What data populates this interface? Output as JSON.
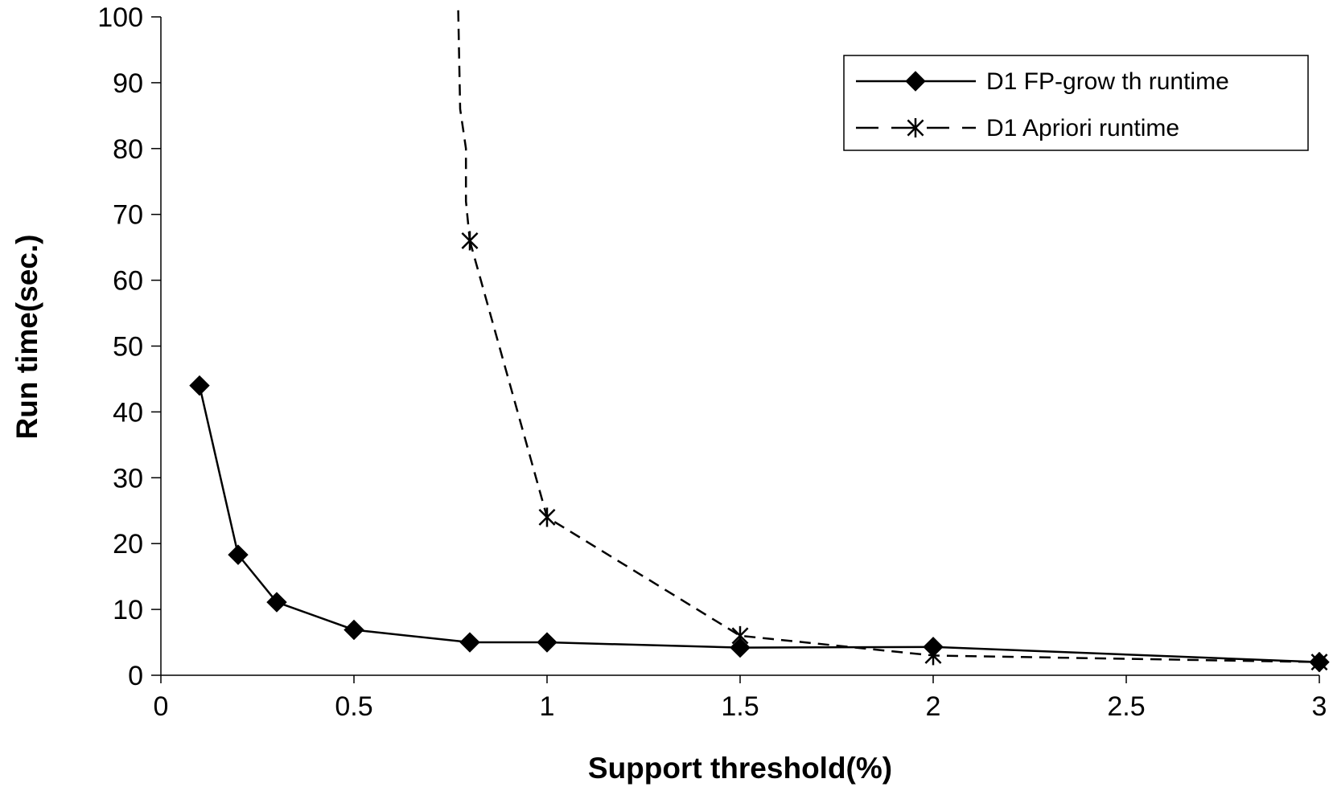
{
  "chart_data": {
    "type": "line",
    "title": "",
    "xlabel": "Support threshold(%)",
    "ylabel": "Run time(sec.)",
    "xlim": [
      0,
      3
    ],
    "ylim": [
      0,
      100
    ],
    "x_ticks": [
      "0",
      "0.5",
      "1",
      "1.5",
      "2",
      "2.5",
      "3"
    ],
    "y_ticks": [
      "0",
      "10",
      "20",
      "30",
      "40",
      "50",
      "60",
      "70",
      "80",
      "90",
      "100"
    ],
    "grid": false,
    "legend_position": "top-right",
    "series": [
      {
        "name": "D1 FP-grow th runtime",
        "line_style": "solid",
        "marker": "diamond",
        "color": "#000000",
        "points": [
          {
            "x": 0.1,
            "y": 44
          },
          {
            "x": 0.2,
            "y": 18.3
          },
          {
            "x": 0.3,
            "y": 11.1
          },
          {
            "x": 0.5,
            "y": 6.9
          },
          {
            "x": 0.8,
            "y": 5
          },
          {
            "x": 1.0,
            "y": 5
          },
          {
            "x": 1.5,
            "y": 4.2
          },
          {
            "x": 2.0,
            "y": 4.3
          },
          {
            "x": 3.0,
            "y": 2
          }
        ]
      },
      {
        "name": "D1 Apriori runtime",
        "line_style": "dashed",
        "marker": "asterisk",
        "color": "#000000",
        "points": [
          {
            "x": 0.8,
            "y": 66
          },
          {
            "x": 1.0,
            "y": 24
          },
          {
            "x": 1.5,
            "y": 6
          },
          {
            "x": 2.0,
            "y": 3
          },
          {
            "x": 3.0,
            "y": 2
          }
        ],
        "off_scale_trace": [
          {
            "x": 0.77,
            "y": 101
          },
          {
            "x": 0.775,
            "y": 86
          },
          {
            "x": 0.79,
            "y": 80
          },
          {
            "x": 0.79,
            "y": 72
          }
        ]
      }
    ]
  }
}
